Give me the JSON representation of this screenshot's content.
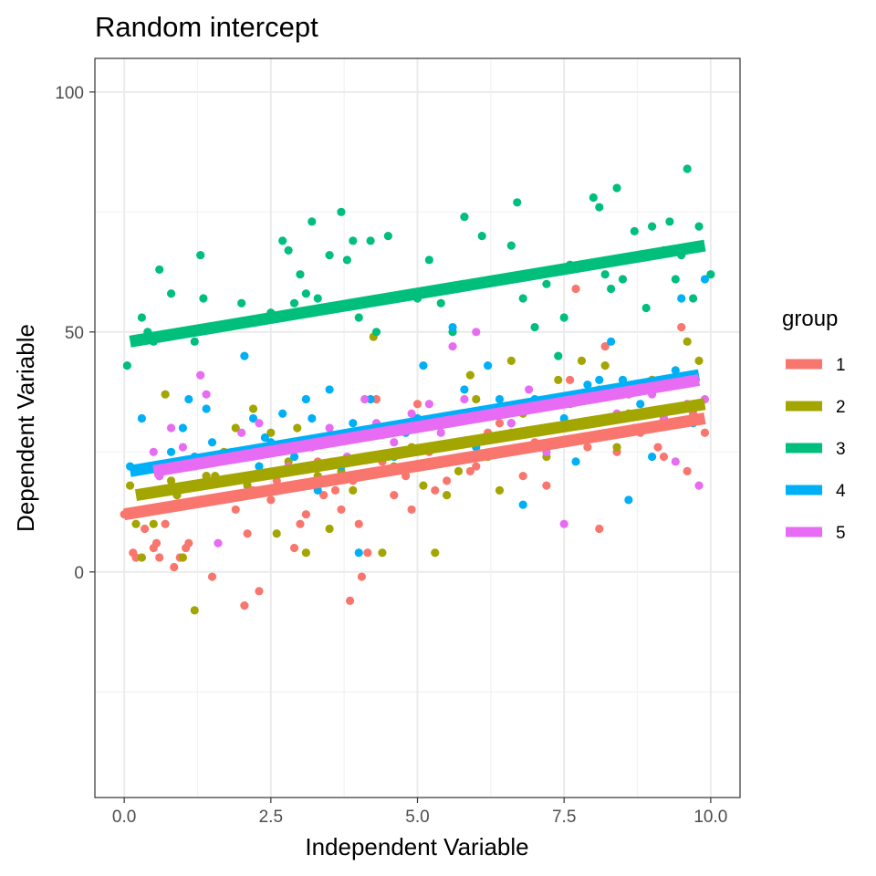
{
  "chart_data": {
    "type": "scatter",
    "title": "Random intercept",
    "xlabel": "Independent Variable",
    "ylabel": "Dependent Variable",
    "xlim": [
      -0.5,
      10.5
    ],
    "ylim": [
      -47,
      107
    ],
    "x_ticks": [
      0.0,
      2.5,
      5.0,
      7.5,
      10.0
    ],
    "x_tick_labels": [
      "0.0",
      "2.5",
      "5.0",
      "7.5",
      "10.0"
    ],
    "y_ticks": [
      0,
      50,
      100
    ],
    "y_tick_labels": [
      "0",
      "50",
      "100"
    ],
    "grid": true,
    "legend": {
      "title": "group",
      "position": "right"
    },
    "series": [
      {
        "name": "1",
        "color": "#F8766D",
        "fit": {
          "x": [
            0.0,
            9.9
          ],
          "y": [
            12,
            32
          ]
        },
        "points": [
          [
            0.0,
            12
          ],
          [
            0.15,
            4
          ],
          [
            0.2,
            3
          ],
          [
            0.35,
            9
          ],
          [
            0.5,
            5
          ],
          [
            0.55,
            6
          ],
          [
            0.6,
            3
          ],
          [
            0.7,
            10
          ],
          [
            0.85,
            1
          ],
          [
            0.95,
            3
          ],
          [
            1.05,
            5
          ],
          [
            1.1,
            6
          ],
          [
            1.2,
            22
          ],
          [
            1.4,
            20
          ],
          [
            1.5,
            -1
          ],
          [
            1.7,
            24
          ],
          [
            1.9,
            13
          ],
          [
            2.05,
            -7
          ],
          [
            2.1,
            8
          ],
          [
            2.2,
            17
          ],
          [
            2.3,
            -4
          ],
          [
            2.5,
            15
          ],
          [
            2.6,
            19
          ],
          [
            2.8,
            21
          ],
          [
            2.9,
            5
          ],
          [
            3.0,
            10
          ],
          [
            3.1,
            12
          ],
          [
            3.3,
            23
          ],
          [
            3.4,
            16
          ],
          [
            3.6,
            17
          ],
          [
            3.7,
            13
          ],
          [
            3.85,
            -6
          ],
          [
            3.9,
            19
          ],
          [
            4.0,
            10
          ],
          [
            4.05,
            -1
          ],
          [
            4.15,
            4
          ],
          [
            4.3,
            36
          ],
          [
            4.4,
            23
          ],
          [
            4.6,
            16
          ],
          [
            4.8,
            20
          ],
          [
            4.9,
            13
          ],
          [
            5.0,
            35
          ],
          [
            5.2,
            25
          ],
          [
            5.3,
            17
          ],
          [
            5.5,
            19
          ],
          [
            5.7,
            27
          ],
          [
            5.9,
            21
          ],
          [
            6.0,
            22
          ],
          [
            6.2,
            29
          ],
          [
            6.4,
            31
          ],
          [
            6.6,
            29
          ],
          [
            6.8,
            20
          ],
          [
            7.0,
            27
          ],
          [
            7.2,
            18
          ],
          [
            7.4,
            36
          ],
          [
            7.6,
            40
          ],
          [
            7.7,
            59
          ],
          [
            7.9,
            26
          ],
          [
            8.1,
            9
          ],
          [
            8.2,
            47
          ],
          [
            8.4,
            25
          ],
          [
            8.6,
            37
          ],
          [
            8.8,
            29
          ],
          [
            9.0,
            40
          ],
          [
            9.1,
            26
          ],
          [
            9.2,
            24
          ],
          [
            9.4,
            34
          ],
          [
            9.5,
            51
          ],
          [
            9.6,
            21
          ],
          [
            9.7,
            33
          ],
          [
            9.9,
            29
          ]
        ]
      },
      {
        "name": "2",
        "color": "#A3A500",
        "fit": {
          "x": [
            0.2,
            9.9
          ],
          "y": [
            16,
            35
          ]
        },
        "points": [
          [
            0.1,
            18
          ],
          [
            0.2,
            10
          ],
          [
            0.3,
            3
          ],
          [
            0.5,
            10
          ],
          [
            0.7,
            37
          ],
          [
            0.8,
            19
          ],
          [
            0.9,
            16
          ],
          [
            1.0,
            3
          ],
          [
            1.2,
            -8
          ],
          [
            1.4,
            20
          ],
          [
            1.55,
            20
          ],
          [
            1.7,
            25
          ],
          [
            1.9,
            30
          ],
          [
            2.1,
            18
          ],
          [
            2.2,
            34
          ],
          [
            2.3,
            22
          ],
          [
            2.5,
            29
          ],
          [
            2.6,
            8
          ],
          [
            2.8,
            23
          ],
          [
            2.95,
            30
          ],
          [
            3.1,
            4
          ],
          [
            3.3,
            20
          ],
          [
            3.5,
            9
          ],
          [
            3.7,
            21
          ],
          [
            3.9,
            17
          ],
          [
            4.1,
            20
          ],
          [
            4.25,
            49
          ],
          [
            4.4,
            4
          ],
          [
            4.5,
            29
          ],
          [
            4.6,
            22
          ],
          [
            4.9,
            26
          ],
          [
            5.1,
            18
          ],
          [
            5.3,
            4
          ],
          [
            5.5,
            16
          ],
          [
            5.7,
            21
          ],
          [
            5.9,
            41
          ],
          [
            6.0,
            36
          ],
          [
            6.2,
            24
          ],
          [
            6.4,
            17
          ],
          [
            6.6,
            44
          ],
          [
            6.8,
            33
          ],
          [
            7.0,
            29
          ],
          [
            7.2,
            24
          ],
          [
            7.4,
            40
          ],
          [
            7.6,
            35
          ],
          [
            7.8,
            44
          ],
          [
            8.0,
            31
          ],
          [
            8.2,
            43
          ],
          [
            8.4,
            26
          ],
          [
            8.6,
            33
          ],
          [
            8.8,
            38
          ],
          [
            9.0,
            40
          ],
          [
            9.2,
            32
          ],
          [
            9.4,
            39
          ],
          [
            9.6,
            48
          ],
          [
            9.8,
            44
          ]
        ]
      },
      {
        "name": "3",
        "color": "#00BF7D",
        "fit": {
          "x": [
            0.1,
            9.9
          ],
          "y": [
            48,
            68
          ]
        },
        "points": [
          [
            0.05,
            43
          ],
          [
            0.3,
            53
          ],
          [
            0.4,
            50
          ],
          [
            0.5,
            48
          ],
          [
            0.6,
            63
          ],
          [
            0.8,
            58
          ],
          [
            0.9,
            50
          ],
          [
            1.2,
            48
          ],
          [
            1.3,
            66
          ],
          [
            1.35,
            57
          ],
          [
            2.0,
            56
          ],
          [
            2.5,
            54
          ],
          [
            2.7,
            69
          ],
          [
            2.8,
            67
          ],
          [
            2.9,
            56
          ],
          [
            3.0,
            62
          ],
          [
            3.1,
            58
          ],
          [
            3.2,
            73
          ],
          [
            3.3,
            57
          ],
          [
            3.5,
            66
          ],
          [
            3.7,
            75
          ],
          [
            3.8,
            65
          ],
          [
            3.9,
            69
          ],
          [
            4.0,
            53
          ],
          [
            4.2,
            69
          ],
          [
            4.3,
            50
          ],
          [
            4.5,
            70
          ],
          [
            5.0,
            57
          ],
          [
            5.2,
            65
          ],
          [
            5.4,
            56
          ],
          [
            5.6,
            50
          ],
          [
            5.8,
            74
          ],
          [
            6.1,
            70
          ],
          [
            6.3,
            61
          ],
          [
            6.6,
            68
          ],
          [
            6.7,
            77
          ],
          [
            6.8,
            57
          ],
          [
            7.0,
            51
          ],
          [
            7.2,
            60
          ],
          [
            7.4,
            45
          ],
          [
            7.5,
            53
          ],
          [
            7.6,
            64
          ],
          [
            7.8,
            64
          ],
          [
            8.0,
            78
          ],
          [
            8.1,
            76
          ],
          [
            8.2,
            62
          ],
          [
            8.3,
            59
          ],
          [
            8.4,
            80
          ],
          [
            8.5,
            61
          ],
          [
            8.7,
            71
          ],
          [
            8.9,
            55
          ],
          [
            9.0,
            72
          ],
          [
            9.2,
            67
          ],
          [
            9.3,
            73
          ],
          [
            9.4,
            61
          ],
          [
            9.5,
            66
          ],
          [
            9.6,
            84
          ],
          [
            9.7,
            57
          ],
          [
            9.8,
            72
          ],
          [
            10.0,
            62
          ]
        ]
      },
      {
        "name": "4",
        "color": "#00B0F6",
        "fit": {
          "x": [
            0.1,
            9.8
          ],
          "y": [
            21,
            41
          ]
        },
        "points": [
          [
            0.1,
            22
          ],
          [
            0.3,
            32
          ],
          [
            0.6,
            20
          ],
          [
            0.8,
            25
          ],
          [
            1.0,
            30
          ],
          [
            1.1,
            36
          ],
          [
            1.2,
            24
          ],
          [
            1.4,
            34
          ],
          [
            1.5,
            27
          ],
          [
            1.7,
            19
          ],
          [
            1.9,
            25
          ],
          [
            2.05,
            45
          ],
          [
            2.2,
            32
          ],
          [
            2.3,
            22
          ],
          [
            2.4,
            28
          ],
          [
            2.5,
            27
          ],
          [
            2.7,
            33
          ],
          [
            2.9,
            24
          ],
          [
            3.1,
            36
          ],
          [
            3.2,
            32
          ],
          [
            3.3,
            17
          ],
          [
            3.5,
            38
          ],
          [
            3.7,
            22
          ],
          [
            3.9,
            31
          ],
          [
            4.0,
            4
          ],
          [
            4.2,
            36
          ],
          [
            4.4,
            30
          ],
          [
            4.6,
            24
          ],
          [
            4.8,
            29
          ],
          [
            5.0,
            32
          ],
          [
            5.1,
            43
          ],
          [
            5.3,
            32
          ],
          [
            5.6,
            51
          ],
          [
            5.8,
            38
          ],
          [
            6.0,
            26
          ],
          [
            6.2,
            43
          ],
          [
            6.4,
            36
          ],
          [
            6.6,
            31
          ],
          [
            6.8,
            14
          ],
          [
            7.0,
            36
          ],
          [
            7.2,
            30
          ],
          [
            7.5,
            32
          ],
          [
            7.7,
            23
          ],
          [
            7.9,
            39
          ],
          [
            8.1,
            40
          ],
          [
            8.3,
            48
          ],
          [
            8.5,
            40
          ],
          [
            8.6,
            15
          ],
          [
            8.8,
            35
          ],
          [
            9.0,
            24
          ],
          [
            9.2,
            33
          ],
          [
            9.4,
            42
          ],
          [
            9.5,
            57
          ],
          [
            9.7,
            31
          ],
          [
            9.9,
            61
          ]
        ]
      },
      {
        "name": "5",
        "color": "#E76BF3",
        "fit": {
          "x": [
            0.5,
            9.8
          ],
          "y": [
            21,
            40
          ]
        },
        "points": [
          [
            0.5,
            25
          ],
          [
            0.6,
            20
          ],
          [
            0.8,
            30
          ],
          [
            1.0,
            26
          ],
          [
            1.3,
            41
          ],
          [
            1.4,
            37
          ],
          [
            1.6,
            6
          ],
          [
            1.8,
            24
          ],
          [
            2.0,
            29
          ],
          [
            2.3,
            31
          ],
          [
            2.5,
            25
          ],
          [
            2.8,
            22
          ],
          [
            3.0,
            27
          ],
          [
            3.2,
            26
          ],
          [
            3.5,
            30
          ],
          [
            3.8,
            24
          ],
          [
            4.1,
            36
          ],
          [
            4.3,
            31
          ],
          [
            4.6,
            27
          ],
          [
            4.9,
            33
          ],
          [
            5.2,
            35
          ],
          [
            5.4,
            29
          ],
          [
            5.6,
            47
          ],
          [
            5.8,
            36
          ],
          [
            6.0,
            50
          ],
          [
            6.3,
            33
          ],
          [
            6.6,
            31
          ],
          [
            6.9,
            38
          ],
          [
            7.2,
            25
          ],
          [
            7.5,
            10
          ],
          [
            7.8,
            36
          ],
          [
            8.1,
            38
          ],
          [
            8.4,
            33
          ],
          [
            8.7,
            30
          ],
          [
            9.0,
            37
          ],
          [
            9.2,
            32
          ],
          [
            9.4,
            23
          ],
          [
            9.6,
            35
          ],
          [
            9.8,
            18
          ],
          [
            9.9,
            36
          ]
        ]
      }
    ]
  }
}
